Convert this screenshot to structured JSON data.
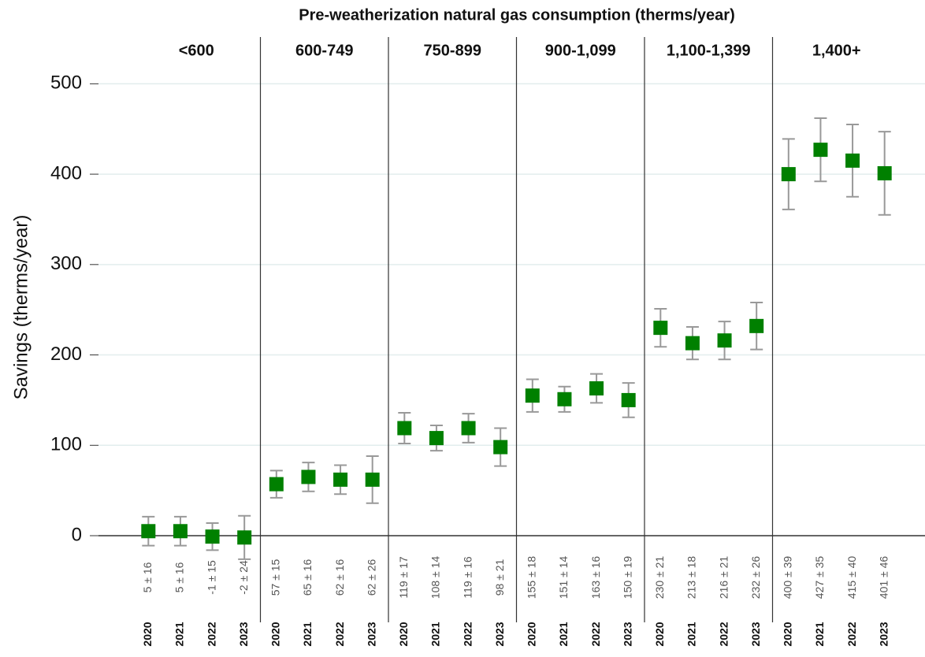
{
  "chart_data": {
    "type": "errorbar",
    "title": "Pre-weatherization natural gas consumption (therms/year)",
    "y_label": "Savings (therms/year)",
    "ylim": [
      0,
      550
    ],
    "yticks": [
      0,
      100,
      200,
      300,
      400,
      500
    ],
    "grid": true,
    "color": "#008000",
    "error_color": "#999999",
    "groups": [
      {
        "name": "<600",
        "categories": [
          "2020",
          "2021",
          "2022",
          "2023"
        ],
        "values": [
          5,
          5,
          -1,
          -2
        ],
        "errors": [
          16,
          16,
          15,
          24
        ],
        "value_labels": [
          "5 ± 16",
          "5 ± 16",
          "-1 ± 15",
          "-2 ± 24"
        ]
      },
      {
        "name": "600-749",
        "categories": [
          "2020",
          "2021",
          "2022",
          "2023"
        ],
        "values": [
          57,
          65,
          62,
          62
        ],
        "errors": [
          15,
          16,
          16,
          26
        ],
        "value_labels": [
          "57 ± 15",
          "65 ± 16",
          "62 ± 16",
          "62 ± 26"
        ]
      },
      {
        "name": "750-899",
        "categories": [
          "2020",
          "2021",
          "2022",
          "2023"
        ],
        "values": [
          119,
          108,
          119,
          98
        ],
        "errors": [
          17,
          14,
          16,
          21
        ],
        "value_labels": [
          "119 ± 17",
          "108 ± 14",
          "119 ± 16",
          "98 ± 21"
        ]
      },
      {
        "name": "900-1,099",
        "categories": [
          "2020",
          "2021",
          "2022",
          "2023"
        ],
        "values": [
          155,
          151,
          163,
          150
        ],
        "errors": [
          18,
          14,
          16,
          19
        ],
        "value_labels": [
          "155 ± 18",
          "151 ± 14",
          "163 ± 16",
          "150 ± 19"
        ]
      },
      {
        "name": "1,100-1,399",
        "categories": [
          "2020",
          "2021",
          "2022",
          "2023"
        ],
        "values": [
          230,
          213,
          216,
          232
        ],
        "errors": [
          21,
          18,
          21,
          26
        ],
        "value_labels": [
          "230 ± 21",
          "213 ± 18",
          "216 ± 21",
          "232 ± 26"
        ]
      },
      {
        "name": "1,400+",
        "categories": [
          "2020",
          "2021",
          "2022",
          "2023"
        ],
        "values": [
          400,
          427,
          415,
          401
        ],
        "errors": [
          39,
          35,
          40,
          46
        ],
        "value_labels": [
          "400 ± 39",
          "427 ± 35",
          "415 ± 40",
          "401 ± 46"
        ]
      }
    ]
  }
}
